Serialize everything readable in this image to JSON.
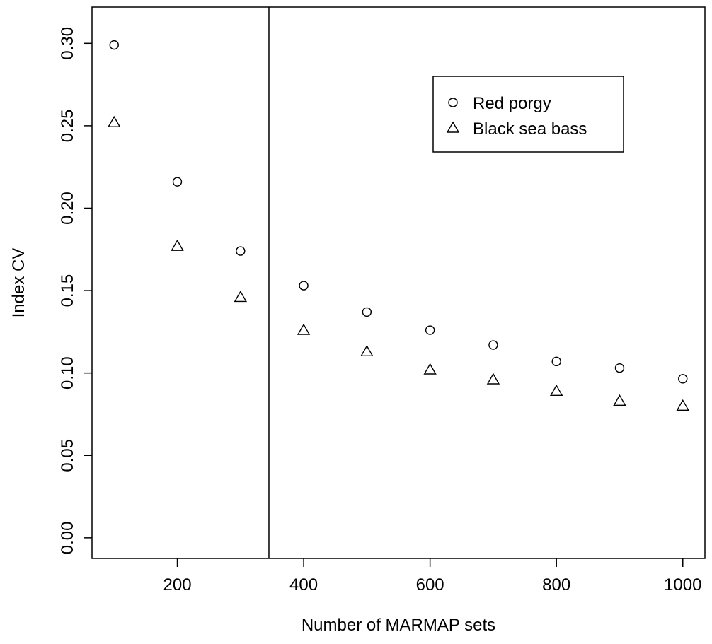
{
  "chart_data": {
    "type": "scatter",
    "title": "",
    "xlabel": "Number of MARMAP sets",
    "ylabel": "Index CV",
    "xlim": [
      65,
      1035
    ],
    "ylim": [
      -0.0125,
      0.322
    ],
    "x_ticks": [
      {
        "value": 200,
        "label": "200"
      },
      {
        "value": 400,
        "label": "400"
      },
      {
        "value": 600,
        "label": "600"
      },
      {
        "value": 800,
        "label": "800"
      },
      {
        "value": 1000,
        "label": "1000"
      }
    ],
    "y_ticks": [
      {
        "value": 0.0,
        "label": "0.00"
      },
      {
        "value": 0.05,
        "label": "0.05"
      },
      {
        "value": 0.1,
        "label": "0.10"
      },
      {
        "value": 0.15,
        "label": "0.15"
      },
      {
        "value": 0.2,
        "label": "0.20"
      },
      {
        "value": 0.25,
        "label": "0.25"
      },
      {
        "value": 0.3,
        "label": "0.30"
      }
    ],
    "vertical_line_x": 345,
    "grid": false,
    "legend": {
      "placement": "top-right",
      "entries": [
        {
          "label": "Red porgy",
          "marker": "circle"
        },
        {
          "label": "Black sea bass",
          "marker": "triangle"
        }
      ]
    },
    "series": [
      {
        "name": "Red porgy",
        "marker": "circle",
        "x": [
          100,
          200,
          300,
          400,
          500,
          600,
          700,
          800,
          900,
          1000
        ],
        "y": [
          0.299,
          0.216,
          0.174,
          0.153,
          0.137,
          0.126,
          0.117,
          0.107,
          0.103,
          0.0965
        ]
      },
      {
        "name": "Black sea bass",
        "marker": "triangle",
        "x": [
          100,
          200,
          300,
          400,
          500,
          600,
          700,
          800,
          900,
          1000
        ],
        "y": [
          0.252,
          0.177,
          0.146,
          0.126,
          0.113,
          0.102,
          0.096,
          0.089,
          0.083,
          0.08
        ]
      }
    ]
  }
}
